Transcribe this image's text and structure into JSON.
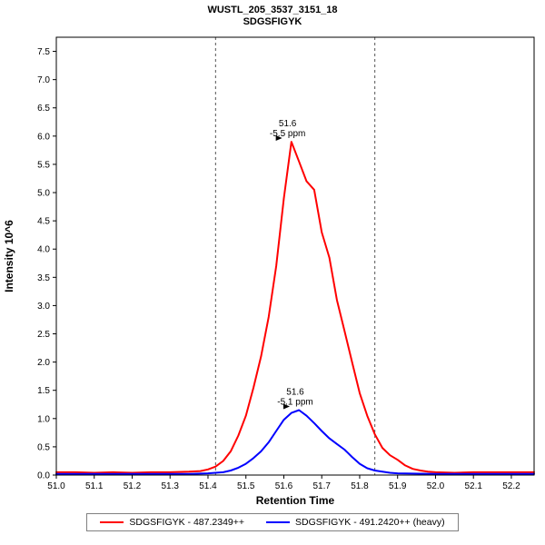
{
  "header": {
    "title": "WUSTL_205_3537_3151_18",
    "subtitle": "SDGSFIGYK"
  },
  "chart_data": {
    "type": "line",
    "title": "WUSTL_205_3537_3151_18",
    "subtitle": "SDGSFIGYK",
    "xlabel": "Retention Time",
    "ylabel": "Intensity 10^6",
    "xlim": [
      51.0,
      52.26
    ],
    "ylim": [
      0,
      7.75
    ],
    "grid": false,
    "legend_position": "bottom",
    "boundary_color": "#555555",
    "boundaries": [
      51.42,
      51.84
    ],
    "x_ticks": [
      "51.0",
      "51.1",
      "51.2",
      "51.3",
      "51.4",
      "51.5",
      "51.6",
      "51.7",
      "51.8",
      "51.9",
      "52.0",
      "52.1",
      "52.2"
    ],
    "y_ticks": [
      "0.0",
      "0.5",
      "1.0",
      "1.5",
      "2.0",
      "2.5",
      "3.0",
      "3.5",
      "4.0",
      "4.5",
      "5.0",
      "5.5",
      "6.0",
      "6.5",
      "7.0",
      "7.5"
    ],
    "series": [
      {
        "name": "SDGSFIGYK - 487.2349++",
        "color": "#ff0000",
        "annotation": {
          "label": "51.6",
          "sublabel": "-5.5 ppm",
          "x": 51.61,
          "y": 5.9
        },
        "points": [
          [
            51.0,
            0.05
          ],
          [
            51.05,
            0.05
          ],
          [
            51.1,
            0.04
          ],
          [
            51.15,
            0.05
          ],
          [
            51.2,
            0.04
          ],
          [
            51.25,
            0.05
          ],
          [
            51.3,
            0.05
          ],
          [
            51.35,
            0.06
          ],
          [
            51.38,
            0.07
          ],
          [
            51.4,
            0.1
          ],
          [
            51.42,
            0.15
          ],
          [
            51.44,
            0.25
          ],
          [
            51.46,
            0.42
          ],
          [
            51.48,
            0.7
          ],
          [
            51.5,
            1.05
          ],
          [
            51.52,
            1.55
          ],
          [
            51.54,
            2.1
          ],
          [
            51.56,
            2.8
          ],
          [
            51.58,
            3.7
          ],
          [
            51.6,
            4.9
          ],
          [
            51.62,
            5.9
          ],
          [
            51.64,
            5.55
          ],
          [
            51.66,
            5.2
          ],
          [
            51.68,
            5.05
          ],
          [
            51.7,
            4.3
          ],
          [
            51.72,
            3.85
          ],
          [
            51.74,
            3.1
          ],
          [
            51.76,
            2.55
          ],
          [
            51.78,
            2.0
          ],
          [
            51.8,
            1.45
          ],
          [
            51.82,
            1.05
          ],
          [
            51.84,
            0.72
          ],
          [
            51.86,
            0.48
          ],
          [
            51.88,
            0.35
          ],
          [
            51.9,
            0.27
          ],
          [
            51.92,
            0.17
          ],
          [
            51.94,
            0.11
          ],
          [
            51.96,
            0.08
          ],
          [
            51.98,
            0.06
          ],
          [
            52.0,
            0.05
          ],
          [
            52.05,
            0.04
          ],
          [
            52.1,
            0.05
          ],
          [
            52.15,
            0.05
          ],
          [
            52.2,
            0.05
          ],
          [
            52.26,
            0.05
          ]
        ]
      },
      {
        "name": "SDGSFIGYK - 491.2420++ (heavy)",
        "color": "#0000ff",
        "annotation": {
          "label": "51.6",
          "sublabel": "-5.1 ppm",
          "x": 51.63,
          "y": 1.15
        },
        "points": [
          [
            51.0,
            0.02
          ],
          [
            51.1,
            0.02
          ],
          [
            51.2,
            0.02
          ],
          [
            51.3,
            0.02
          ],
          [
            51.35,
            0.02
          ],
          [
            51.4,
            0.03
          ],
          [
            51.44,
            0.05
          ],
          [
            51.46,
            0.08
          ],
          [
            51.48,
            0.13
          ],
          [
            51.5,
            0.2
          ],
          [
            51.52,
            0.3
          ],
          [
            51.54,
            0.42
          ],
          [
            51.56,
            0.58
          ],
          [
            51.58,
            0.78
          ],
          [
            51.6,
            0.98
          ],
          [
            51.62,
            1.1
          ],
          [
            51.64,
            1.15
          ],
          [
            51.66,
            1.05
          ],
          [
            51.68,
            0.92
          ],
          [
            51.7,
            0.78
          ],
          [
            51.72,
            0.65
          ],
          [
            51.74,
            0.55
          ],
          [
            51.76,
            0.45
          ],
          [
            51.78,
            0.32
          ],
          [
            51.8,
            0.2
          ],
          [
            51.82,
            0.12
          ],
          [
            51.84,
            0.08
          ],
          [
            51.86,
            0.06
          ],
          [
            51.88,
            0.04
          ],
          [
            51.9,
            0.03
          ],
          [
            52.0,
            0.02
          ],
          [
            52.1,
            0.02
          ],
          [
            52.2,
            0.02
          ],
          [
            52.26,
            0.02
          ]
        ]
      }
    ]
  }
}
